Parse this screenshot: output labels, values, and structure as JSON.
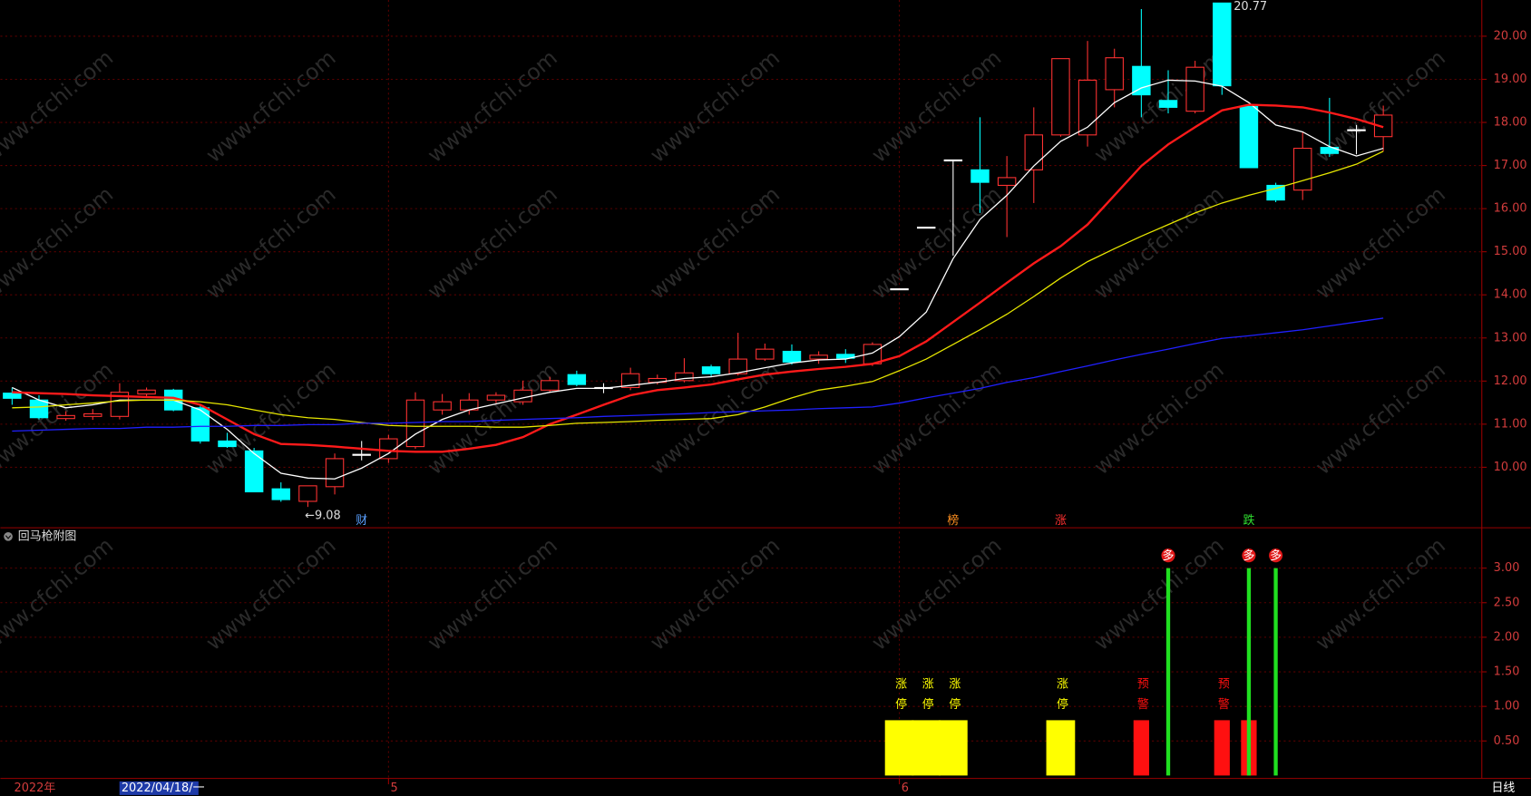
{
  "chart_data": [
    {
      "type": "candlestick",
      "open": [
        11.72,
        11.56,
        11.13,
        11.18,
        11.18,
        11.7,
        11.79,
        11.38,
        10.61,
        10.38,
        9.5,
        9.21,
        9.55,
        10.28,
        10.2,
        10.48,
        11.33,
        11.33,
        11.56,
        11.52,
        11.79,
        12.15,
        11.83,
        11.85,
        11.97,
        12.01,
        12.33,
        12.17,
        12.51,
        12.69,
        12.51,
        12.62,
        12.4,
        14.14,
        15.57,
        17.13,
        16.9,
        16.54,
        16.9,
        17.71,
        17.71,
        18.76,
        19.3,
        18.51,
        18.26,
        20.77,
        18.37,
        16.54,
        16.43,
        17.42,
        17.82,
        17.67
      ],
      "high": [
        11.85,
        11.67,
        11.3,
        11.35,
        11.95,
        11.85,
        11.82,
        11.45,
        10.8,
        10.45,
        9.65,
        9.57,
        10.32,
        10.61,
        10.75,
        11.74,
        11.7,
        11.72,
        11.74,
        12.01,
        12.1,
        12.24,
        11.95,
        12.31,
        12.15,
        12.53,
        12.38,
        13.12,
        12.87,
        12.85,
        12.69,
        12.74,
        12.9,
        14.14,
        15.57,
        17.13,
        18.12,
        17.22,
        18.35,
        19.48,
        19.89,
        19.71,
        20.63,
        19.21,
        19.43,
        20.77,
        18.4,
        16.6,
        17.78,
        18.57,
        17.94,
        18.39
      ],
      "low": [
        11.45,
        11.11,
        11.08,
        11.1,
        11.11,
        11.65,
        11.3,
        10.55,
        10.45,
        9.43,
        9.2,
        9.08,
        9.37,
        10.16,
        10.1,
        10.43,
        11.22,
        11.22,
        11.49,
        11.45,
        11.74,
        11.88,
        11.72,
        11.79,
        11.92,
        11.97,
        12.1,
        12.13,
        12.47,
        12.38,
        12.4,
        12.42,
        12.35,
        14.14,
        15.57,
        14.91,
        15.9,
        15.34,
        16.13,
        17.67,
        17.44,
        18.35,
        18.12,
        18.21,
        18.21,
        18.64,
        16.95,
        16.15,
        16.2,
        17.2,
        17.26,
        17.33
      ],
      "close": [
        11.6,
        11.15,
        11.2,
        11.24,
        11.74,
        11.79,
        11.33,
        10.61,
        10.48,
        9.43,
        9.25,
        9.57,
        10.2,
        10.3,
        10.66,
        11.56,
        11.52,
        11.56,
        11.67,
        11.79,
        12.01,
        11.92,
        11.85,
        12.17,
        12.06,
        12.19,
        12.17,
        12.51,
        12.74,
        12.44,
        12.6,
        12.53,
        12.85,
        14.14,
        15.57,
        17.13,
        16.61,
        16.72,
        17.71,
        19.48,
        18.98,
        19.5,
        18.64,
        18.35,
        19.28,
        18.85,
        16.95,
        16.2,
        17.4,
        17.28,
        17.83,
        18.17
      ],
      "up_color": "#ff3232",
      "down_color": "#00ffff",
      "flat_color": "#ffffff",
      "series": [
        {
          "color": "#ffffff",
          "values": [
            11.85,
            11.56,
            11.38,
            11.45,
            11.56,
            11.56,
            11.56,
            11.33,
            10.88,
            10.32,
            9.86,
            9.75,
            9.73,
            9.98,
            10.32,
            10.77,
            11.11,
            11.33,
            11.47,
            11.61,
            11.74,
            11.83,
            11.83,
            11.9,
            11.97,
            12.06,
            12.1,
            12.19,
            12.31,
            12.42,
            12.49,
            12.51,
            12.65,
            13.03,
            13.6,
            14.84,
            15.75,
            16.31,
            16.99,
            17.56,
            17.89,
            18.46,
            18.8,
            18.98,
            18.96,
            18.84,
            18.46,
            17.94,
            17.78,
            17.44,
            17.22,
            17.4
          ]
        },
        {
          "color": "#ff1a1a",
          "values": [
            11.74,
            11.72,
            11.7,
            11.67,
            11.65,
            11.63,
            11.61,
            11.45,
            11.11,
            10.77,
            10.54,
            10.52,
            10.48,
            10.43,
            10.38,
            10.36,
            10.36,
            10.43,
            10.52,
            10.7,
            11.0,
            11.22,
            11.45,
            11.67,
            11.79,
            11.85,
            11.92,
            12.04,
            12.15,
            12.22,
            12.28,
            12.33,
            12.4,
            12.58,
            12.92,
            13.37,
            13.82,
            14.28,
            14.73,
            15.13,
            15.63,
            16.31,
            16.99,
            17.49,
            17.89,
            18.28,
            18.41,
            18.39,
            18.35,
            18.23,
            18.08,
            17.89
          ]
        },
        {
          "color": "#e6e600",
          "values": [
            11.38,
            11.4,
            11.45,
            11.49,
            11.54,
            11.56,
            11.56,
            11.52,
            11.45,
            11.33,
            11.22,
            11.15,
            11.11,
            11.04,
            10.97,
            10.95,
            10.95,
            10.95,
            10.93,
            10.93,
            10.97,
            11.02,
            11.04,
            11.06,
            11.09,
            11.11,
            11.13,
            11.22,
            11.4,
            11.61,
            11.79,
            11.88,
            11.99,
            12.24,
            12.51,
            12.85,
            13.19,
            13.55,
            13.96,
            14.39,
            14.77,
            15.07,
            15.36,
            15.63,
            15.9,
            16.13,
            16.31,
            16.47,
            16.65,
            16.83,
            17.03,
            17.33
          ]
        },
        {
          "color": "#2020ff",
          "values": [
            10.84,
            10.86,
            10.88,
            10.9,
            10.9,
            10.93,
            10.93,
            10.95,
            10.95,
            10.97,
            10.97,
            10.99,
            10.99,
            11.02,
            11.02,
            11.04,
            11.06,
            11.06,
            11.09,
            11.11,
            11.13,
            11.15,
            11.18,
            11.2,
            11.22,
            11.24,
            11.27,
            11.29,
            11.31,
            11.33,
            11.36,
            11.38,
            11.4,
            11.49,
            11.61,
            11.72,
            11.83,
            11.97,
            12.08,
            12.22,
            12.35,
            12.49,
            12.62,
            12.74,
            12.87,
            12.99,
            13.05,
            13.12,
            13.19,
            13.28,
            13.37,
            13.46
          ]
        }
      ],
      "ylim": [
        8.62,
        20.84
      ],
      "yticks": [
        {
          "value": 10,
          "label": "10.00"
        },
        {
          "value": 11,
          "label": "11.00"
        },
        {
          "value": 12,
          "label": "12.00"
        },
        {
          "value": 13,
          "label": "13.00"
        },
        {
          "value": 14,
          "label": "14.00"
        },
        {
          "value": 15,
          "label": "15.00"
        },
        {
          "value": 16,
          "label": "16.00"
        },
        {
          "value": 17,
          "label": "17.00"
        },
        {
          "value": 18,
          "label": "18.00"
        },
        {
          "value": 19,
          "label": "19.00"
        },
        {
          "value": 20,
          "label": "20.00"
        }
      ],
      "grid": true,
      "high_label": "20.77",
      "low_label": "←9.08",
      "events": [
        null,
        null,
        null,
        null,
        null,
        null,
        null,
        null,
        null,
        null,
        null,
        null,
        null,
        {
          "label": "财",
          "color": "#5aa0ff"
        },
        null,
        null,
        null,
        null,
        null,
        null,
        null,
        null,
        null,
        null,
        null,
        null,
        null,
        null,
        null,
        null,
        null,
        null,
        null,
        null,
        null,
        {
          "label": "榜",
          "color": "#ff9020"
        },
        null,
        null,
        null,
        {
          "label": "涨",
          "color": "#ff3030"
        },
        null,
        null,
        null,
        null,
        null,
        null,
        {
          "label": "跌",
          "color": "#30e030"
        },
        null,
        null,
        null,
        null,
        null
      ]
    },
    {
      "type": "bar",
      "title": "回马枪附图",
      "series": [
        {
          "color": "#ffff00",
          "values": [
            null,
            null,
            null,
            null,
            null,
            null,
            null,
            null,
            null,
            null,
            null,
            null,
            null,
            null,
            null,
            null,
            null,
            null,
            null,
            null,
            null,
            null,
            null,
            null,
            null,
            null,
            null,
            null,
            null,
            null,
            null,
            null,
            null,
            0.8,
            0.8,
            0.8,
            null,
            null,
            null,
            0.8,
            null,
            null,
            null,
            null,
            null,
            null,
            null,
            null,
            null,
            null,
            null,
            null
          ],
          "labels": [
            null,
            null,
            null,
            null,
            null,
            null,
            null,
            null,
            null,
            null,
            null,
            null,
            null,
            null,
            null,
            null,
            null,
            null,
            null,
            null,
            null,
            null,
            null,
            null,
            null,
            null,
            null,
            null,
            null,
            null,
            null,
            null,
            null,
            "涨停",
            "涨停",
            "涨停",
            null,
            null,
            null,
            "涨停",
            null,
            null,
            null,
            null,
            null,
            null,
            null,
            null,
            null,
            null,
            null,
            null
          ]
        },
        {
          "color": "#ff1010",
          "values": [
            null,
            null,
            null,
            null,
            null,
            null,
            null,
            null,
            null,
            null,
            null,
            null,
            null,
            null,
            null,
            null,
            null,
            null,
            null,
            null,
            null,
            null,
            null,
            null,
            null,
            null,
            null,
            null,
            null,
            null,
            null,
            null,
            null,
            null,
            null,
            null,
            null,
            null,
            null,
            null,
            null,
            null,
            0.8,
            null,
            null,
            0.8,
            0.8,
            null,
            null,
            null,
            null,
            null
          ],
          "labels": [
            null,
            null,
            null,
            null,
            null,
            null,
            null,
            null,
            null,
            null,
            null,
            null,
            null,
            null,
            null,
            null,
            null,
            null,
            null,
            null,
            null,
            null,
            null,
            null,
            null,
            null,
            null,
            null,
            null,
            null,
            null,
            null,
            null,
            null,
            null,
            null,
            null,
            null,
            null,
            null,
            null,
            null,
            "预警",
            null,
            null,
            "预警",
            null,
            null,
            null,
            null,
            null,
            null
          ]
        },
        {
          "color": "#20e020",
          "values": [
            null,
            null,
            null,
            null,
            null,
            null,
            null,
            null,
            null,
            null,
            null,
            null,
            null,
            null,
            null,
            null,
            null,
            null,
            null,
            null,
            null,
            null,
            null,
            null,
            null,
            null,
            null,
            null,
            null,
            null,
            null,
            null,
            null,
            null,
            null,
            null,
            null,
            null,
            null,
            null,
            null,
            null,
            null,
            3.0,
            null,
            null,
            3.0,
            3.0,
            null,
            null,
            null,
            null
          ],
          "labels": [
            null,
            null,
            null,
            null,
            null,
            null,
            null,
            null,
            null,
            null,
            null,
            null,
            null,
            null,
            null,
            null,
            null,
            null,
            null,
            null,
            null,
            null,
            null,
            null,
            null,
            null,
            null,
            null,
            null,
            null,
            null,
            null,
            null,
            null,
            null,
            null,
            null,
            null,
            null,
            null,
            null,
            null,
            null,
            "多",
            null,
            null,
            "多",
            "多",
            null,
            null,
            null,
            null
          ]
        }
      ],
      "ylim": [
        0,
        3.57
      ],
      "yticks": [
        {
          "value": 0.5,
          "label": "0.50"
        },
        {
          "value": 1,
          "label": "1.00"
        },
        {
          "value": 1.5,
          "label": "1.50"
        },
        {
          "value": 2,
          "label": "2.00"
        },
        {
          "value": 2.5,
          "label": "2.50"
        },
        {
          "value": 3,
          "label": "3.00"
        }
      ],
      "grid": true,
      "year_label": "2022年",
      "cursor_label": "2022/04/18/一",
      "month_labels": [
        null,
        null,
        null,
        null,
        null,
        null,
        null,
        null,
        null,
        null,
        null,
        null,
        null,
        null,
        "5",
        null,
        null,
        null,
        null,
        null,
        null,
        null,
        null,
        null,
        null,
        null,
        null,
        null,
        null,
        null,
        null,
        null,
        null,
        "6",
        null,
        null,
        null,
        null,
        null,
        null,
        null,
        null,
        null,
        null,
        null,
        null,
        null,
        null,
        null,
        null,
        null,
        null
      ],
      "period_label": "日线"
    }
  ],
  "watermark": "www.cfchi.com"
}
